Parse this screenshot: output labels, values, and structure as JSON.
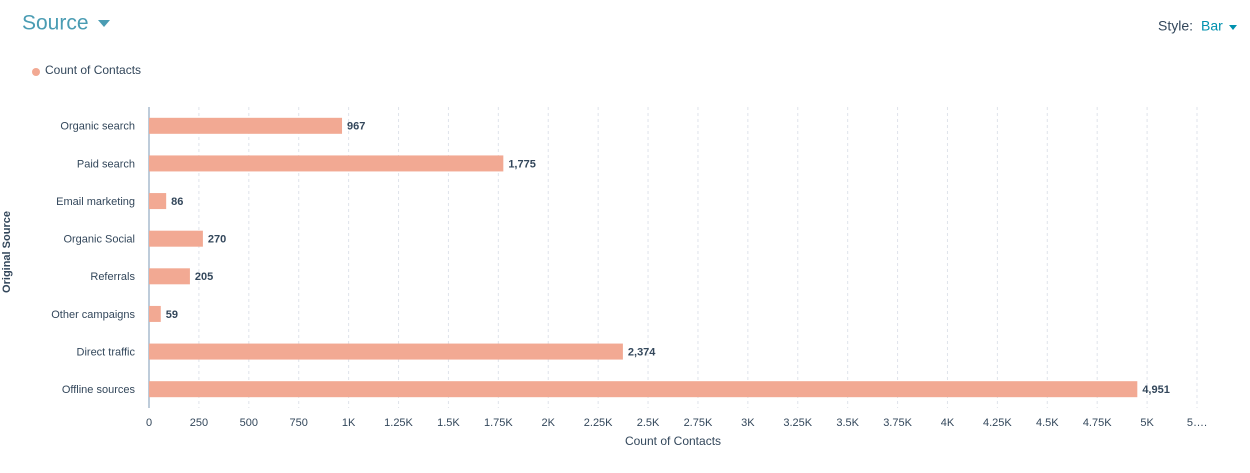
{
  "chart_data": {
    "type": "bar",
    "orientation": "horizontal",
    "title": "Source",
    "style_label": "Style:",
    "style_value": "Bar",
    "xlabel": "Count of Contacts",
    "ylabel": "Original Source",
    "categories": [
      "Organic search",
      "Paid search",
      "Email marketing",
      "Organic Social",
      "Referrals",
      "Other campaigns",
      "Direct traffic",
      "Offline sources"
    ],
    "series": [
      {
        "name": "Count of Contacts",
        "color": "#f2a993",
        "values": [
          967,
          1775,
          86,
          270,
          205,
          59,
          2374,
          4951
        ],
        "value_labels": [
          "967",
          "1,775",
          "86",
          "270",
          "205",
          "59",
          "2,374",
          "4,951"
        ]
      }
    ],
    "xlim": [
      0,
      5250
    ],
    "xticks": [
      0,
      250,
      500,
      750,
      {
        "value": 1000,
        "label": "1K"
      },
      {
        "value": 1250,
        "label": "1.25K"
      },
      {
        "value": 1500,
        "label": "1.5K"
      },
      {
        "value": 1750,
        "label": "1.75K"
      },
      {
        "value": 2000,
        "label": "2K"
      },
      {
        "value": 2250,
        "label": "2.25K"
      },
      {
        "value": 2500,
        "label": "2.5K"
      },
      {
        "value": 2750,
        "label": "2.75K"
      },
      {
        "value": 3000,
        "label": "3K"
      },
      {
        "value": 3250,
        "label": "3.25K"
      },
      {
        "value": 3500,
        "label": "3.5K"
      },
      {
        "value": 3750,
        "label": "3.75K"
      },
      {
        "value": 4000,
        "label": "4K"
      },
      {
        "value": 4250,
        "label": "4.25K"
      },
      {
        "value": 4500,
        "label": "4.5K"
      },
      {
        "value": 4750,
        "label": "4.75K"
      },
      {
        "value": 5000,
        "label": "5K"
      },
      {
        "value": 5250,
        "label": "5…."
      }
    ],
    "grid": true,
    "legend": "top-left"
  }
}
